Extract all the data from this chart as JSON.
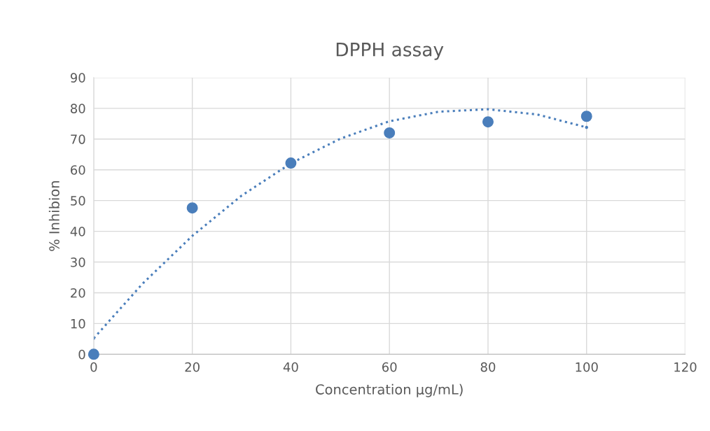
{
  "chart_data": {
    "type": "scatter",
    "title": "DPPH assay",
    "xlabel": "Concentration µg/mL)",
    "ylabel": "% Inhibion",
    "series": [
      {
        "color": "#4a7ebb",
        "x": [
          0,
          20,
          40,
          60,
          80,
          100
        ],
        "values": [
          0,
          47.6,
          62.2,
          72.0,
          75.6,
          77.4
        ],
        "marker": "circle"
      },
      {
        "type": "line",
        "color": "#4a7ebb",
        "line_style": "dotted",
        "x": [
          0,
          10,
          20,
          30,
          40,
          50,
          60,
          70,
          80,
          90,
          100
        ],
        "values": [
          5.2,
          23.1,
          38.5,
          51.6,
          62.1,
          70.1,
          75.8,
          78.9,
          79.7,
          78.0,
          73.8
        ]
      }
    ],
    "xlim": [
      0,
      120
    ],
    "xticks": [
      0,
      20,
      40,
      60,
      80,
      100,
      120
    ],
    "ylim": [
      0,
      90
    ],
    "yticks": [
      0,
      10,
      20,
      30,
      40,
      50,
      60,
      70,
      80,
      90
    ],
    "grid": true
  }
}
